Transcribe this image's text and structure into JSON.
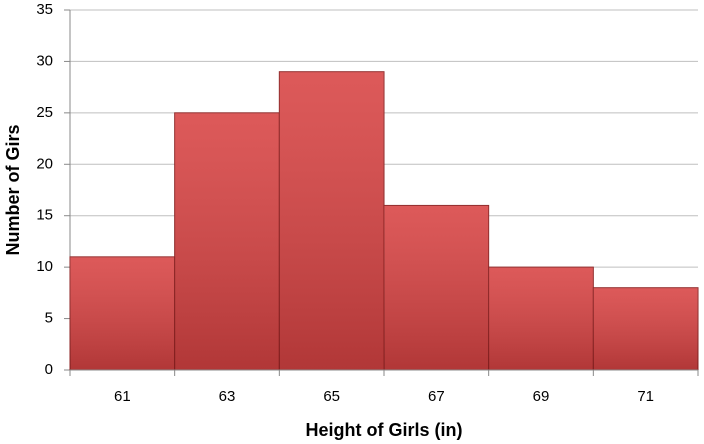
{
  "chart_data": {
    "type": "bar",
    "x_label": "Height of Girls (in)",
    "y_label": "Number of Girs",
    "categories": [
      61,
      63,
      65,
      67,
      69,
      71
    ],
    "values": [
      11,
      25,
      29,
      16,
      10,
      8
    ],
    "color": "#d84343",
    "ylim": [
      0,
      35
    ],
    "yticks": [
      0,
      5,
      10,
      15,
      20,
      25,
      30,
      35
    ],
    "grid": true
  }
}
